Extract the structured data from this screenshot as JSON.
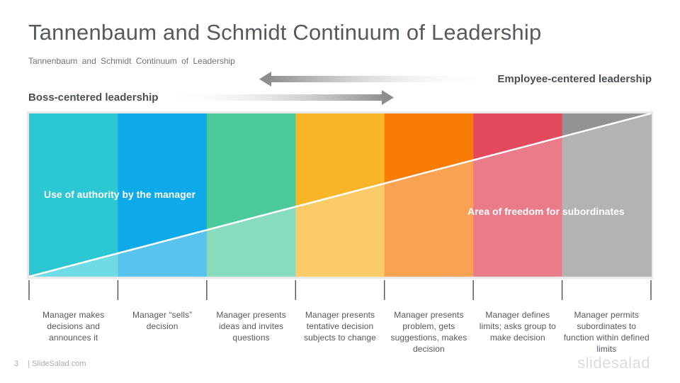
{
  "title": "Tannenbaum and Schmidt Continuum of Leadership",
  "subtitle": "Tannenbaum and Schmidt Continuum of Leadership",
  "arrows": {
    "employee_label": "Employee-centered leadership",
    "boss_label": "Boss-centered leadership"
  },
  "regions": {
    "authority": "Use of authority by the manager",
    "freedom": "Area of freedom for subordinates"
  },
  "segments": [
    {
      "top_color": "#2bc7d2",
      "bottom_color": "#6fdbe2",
      "text": "Manager makes decisions and announces it"
    },
    {
      "top_color": "#0ea9e8",
      "bottom_color": "#58c3ef",
      "text": "Manager “sells” decision"
    },
    {
      "top_color": "#4cca9c",
      "bottom_color": "#87dcbd",
      "text": "Manager presents ideas and invites questions"
    },
    {
      "top_color": "#fab526",
      "bottom_color": "#fbcb6a",
      "text": "Manager presents tentative decision subjects to change"
    },
    {
      "top_color": "#f97c06",
      "bottom_color": "#fba152",
      "text": "Manager presents problem, gets suggestions, makes decision"
    },
    {
      "top_color": "#e34a5d",
      "bottom_color": "#ea7c89",
      "text": "Manager defines limits; asks group to make decision"
    },
    {
      "top_color": "#929292",
      "bottom_color": "#b3b3b3",
      "text": "Manager permits subordinates to function within defined limits"
    }
  ],
  "footer": {
    "page_number": "3",
    "site": "| SlideSalad.com",
    "brand": "slidesalad"
  }
}
